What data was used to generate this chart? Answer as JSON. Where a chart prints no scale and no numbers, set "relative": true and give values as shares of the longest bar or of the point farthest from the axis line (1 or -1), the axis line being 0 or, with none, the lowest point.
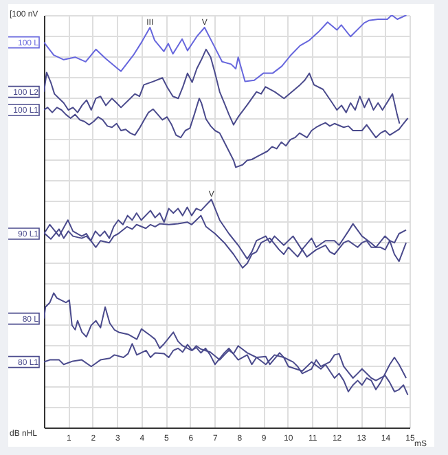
{
  "chart_data": {
    "type": "line",
    "relative": true,
    "xlabel": "mS",
    "xlim": [
      0,
      15
    ],
    "xticks": [
      1,
      2,
      3,
      4,
      5,
      6,
      7,
      8,
      9,
      10,
      11,
      12,
      13,
      14,
      15
    ],
    "grid": true,
    "annotations": [
      "[100 nV",
      "dB nHL",
      {
        "text": "III",
        "x": 4.35,
        "y": 0.97
      },
      {
        "text": "V",
        "x": 6.59,
        "y": 0.97
      },
      {
        "text": "V",
        "x": 6.87,
        "y": 0.553
      }
    ],
    "series": [
      {
        "name": "100 L",
        "color": "#6666dd",
        "x": [
          0,
          0.4,
          0.81,
          1.28,
          1.71,
          2.13,
          2.54,
          3.03,
          3.16,
          3.67,
          3.97,
          4.35,
          4.54,
          4.92,
          5.1,
          5.29,
          5.67,
          5.89,
          6.27,
          6.59,
          6.93,
          7.31,
          7.68,
          7.87,
          7.97,
          8.25,
          8.63,
          9,
          9.38,
          9.76,
          10.13,
          10.51,
          10.89,
          11.26,
          11.64,
          12.02,
          12.2,
          12.58,
          13.14,
          13.33,
          13.71,
          14.09,
          14.27,
          14.5,
          14.87
        ],
        "values": [
          0.934,
          0.903,
          0.892,
          0.898,
          0.887,
          0.917,
          0.894,
          0.87,
          0.864,
          0.903,
          0.931,
          0.97,
          0.939,
          0.912,
          0.931,
          0.906,
          0.942,
          0.914,
          0.948,
          0.97,
          0.931,
          0.887,
          0.881,
          0.87,
          0.898,
          0.839,
          0.842,
          0.859,
          0.859,
          0.876,
          0.903,
          0.926,
          0.939,
          0.959,
          0.983,
          0.964,
          0.976,
          0.948,
          0.981,
          0.987,
          0.99,
          0.99,
          1,
          0.99,
          1
        ]
      },
      {
        "name": "100 L2",
        "color": "#4a4a8c",
        "x": [
          0,
          0.11,
          0.28,
          0.43,
          0.62,
          0.81,
          1,
          1.19,
          1.38,
          1.56,
          1.75,
          1.94,
          2.13,
          2.32,
          2.54,
          2.79,
          2.98,
          3.16,
          3.54,
          3.73,
          3.92,
          4.1,
          4.48,
          4.86,
          5.05,
          5.29,
          5.51,
          5.7,
          5.89,
          6.08,
          6.27,
          6.46,
          6.65,
          6.84,
          7.02,
          7.21,
          7.4,
          7.59,
          7.78,
          7.97,
          8.35,
          8.72,
          8.91,
          9.09,
          9.47,
          9.85,
          10.51,
          10.7,
          10.89,
          11.08,
          11.45,
          11.83,
          12.02,
          12.21,
          12.4,
          12.58,
          12.77,
          12.96,
          13.15,
          13.33,
          13.52,
          13.71,
          13.89,
          14.3,
          14.49,
          14.59
        ],
        "values": [
          0.814,
          0.861,
          0.837,
          0.809,
          0.798,
          0.787,
          0.77,
          0.776,
          0.764,
          0.781,
          0.794,
          0.77,
          0.798,
          0.803,
          0.781,
          0.798,
          0.787,
          0.776,
          0.798,
          0.809,
          0.803,
          0.831,
          0.839,
          0.848,
          0.826,
          0.803,
          0.798,
          0.826,
          0.859,
          0.837,
          0.87,
          0.892,
          0.917,
          0.898,
          0.859,
          0.814,
          0.787,
          0.759,
          0.734,
          0.753,
          0.783,
          0.814,
          0.809,
          0.826,
          0.814,
          0.798,
          0.831,
          0.842,
          0.859,
          0.831,
          0.82,
          0.787,
          0.77,
          0.781,
          0.764,
          0.787,
          0.77,
          0.803,
          0.776,
          0.798,
          0.77,
          0.787,
          0.77,
          0.809,
          0.759,
          0.737
        ]
      },
      {
        "name": "100 L1",
        "color": "#4a4a8c",
        "x": [
          0,
          0.15,
          0.34,
          0.53,
          0.72,
          0.9,
          1.09,
          1.28,
          1.47,
          1.66,
          1.85,
          2.04,
          2.22,
          2.41,
          2.6,
          2.79,
          2.98,
          3.16,
          3.35,
          3.54,
          3.73,
          3.92,
          4.11,
          4.29,
          4.48,
          4.67,
          4.86,
          5.05,
          5.24,
          5.42,
          5.61,
          5.8,
          5.99,
          6.18,
          6.37,
          6.46,
          6.65,
          6.84,
          7.02,
          7.21,
          7.4,
          7.59,
          7.78,
          7.87,
          8.15,
          8.34,
          8.53,
          8.81,
          9.17,
          9.36,
          9.55,
          9.74,
          9.93,
          10.11,
          10.3,
          10.49,
          10.79,
          10.98,
          11.17,
          11.36,
          11.55,
          11.73,
          11.92,
          12.3,
          12.49,
          12.68,
          13.05,
          13.24,
          13.62,
          13.81,
          14,
          14.19,
          14.57,
          14.75,
          14.93
        ],
        "values": [
          0.77,
          0.776,
          0.764,
          0.776,
          0.77,
          0.759,
          0.75,
          0.759,
          0.746,
          0.742,
          0.734,
          0.742,
          0.753,
          0.746,
          0.731,
          0.728,
          0.737,
          0.72,
          0.723,
          0.714,
          0.709,
          0.726,
          0.746,
          0.764,
          0.772,
          0.759,
          0.746,
          0.753,
          0.734,
          0.709,
          0.703,
          0.72,
          0.726,
          0.761,
          0.798,
          0.787,
          0.748,
          0.731,
          0.72,
          0.714,
          0.692,
          0.67,
          0.648,
          0.631,
          0.637,
          0.648,
          0.65,
          0.659,
          0.67,
          0.681,
          0.676,
          0.692,
          0.683,
          0.698,
          0.703,
          0.714,
          0.703,
          0.72,
          0.728,
          0.734,
          0.739,
          0.731,
          0.737,
          0.728,
          0.731,
          0.72,
          0.72,
          0.734,
          0.703,
          0.714,
          0.72,
          0.709,
          0.723,
          0.737,
          0.75
        ]
      },
      {
        "name": "90 L1",
        "color": "#4a4a8c",
        "x": [
          0,
          0.24,
          0.62,
          0.98,
          1.19,
          1.55,
          1.74,
          1.92,
          2.11,
          2.3,
          2.49,
          2.68,
          2.86,
          3.05,
          3.24,
          3.43,
          3.62,
          3.8,
          3.99,
          4.37,
          4.56,
          4.75,
          4.93,
          5.12,
          5.31,
          5.5,
          5.69,
          5.88,
          6.06,
          6.25,
          6.44,
          6.87,
          7.02,
          7.21,
          7.59,
          7.97,
          8.34,
          8.53,
          8.72,
          9.1,
          9.27,
          9.46,
          9.84,
          10.22,
          10.58,
          10.98,
          11.17,
          11.55,
          11.92,
          12.11,
          12.49,
          12.68,
          13.05,
          13.41,
          13.62,
          13.99,
          14.19,
          14.38,
          14.57,
          14.86
        ],
        "values": [
          0.47,
          0.492,
          0.464,
          0.503,
          0.476,
          0.464,
          0.47,
          0.453,
          0.476,
          0.464,
          0.476,
          0.459,
          0.487,
          0.503,
          0.492,
          0.514,
          0.503,
          0.52,
          0.503,
          0.526,
          0.509,
          0.52,
          0.498,
          0.531,
          0.52,
          0.531,
          0.514,
          0.534,
          0.514,
          0.531,
          0.526,
          0.553,
          0.531,
          0.503,
          0.47,
          0.442,
          0.409,
          0.426,
          0.453,
          0.464,
          0.448,
          0.464,
          0.442,
          0.464,
          0.431,
          0.459,
          0.437,
          0.453,
          0.453,
          0.442,
          0.476,
          0.494,
          0.464,
          0.448,
          0.437,
          0.464,
          0.453,
          0.448,
          0.47,
          0.479
        ]
      },
      {
        "color": "#4a4a8c",
        "x": [
          0,
          0.28,
          0.62,
          0.81,
          1,
          1.19,
          1.55,
          1.74,
          1.92,
          2.13,
          2.32,
          2.68,
          2.86,
          3.05,
          3.41,
          3.62,
          3.8,
          4.18,
          4.37,
          4.56,
          4.75,
          5.12,
          5.5,
          5.88,
          6.06,
          6.25,
          6.44,
          6.65,
          7.02,
          7.4,
          7.78,
          8.15,
          8.34,
          8.53,
          8.72,
          8.91,
          9.27,
          9.65,
          9.84,
          10.03,
          10.41,
          10.6,
          10.79,
          11.17,
          11.55,
          11.73,
          11.92,
          12.3,
          12.49,
          12.87,
          13.05,
          13.24,
          13.43,
          13.81,
          14,
          14.19,
          14.38,
          14.57,
          14.75,
          14.86
        ],
        "values": [
          0.472,
          0.457,
          0.481,
          0.459,
          0.476,
          0.464,
          0.459,
          0.464,
          0.453,
          0.437,
          0.453,
          0.448,
          0.464,
          0.47,
          0.487,
          0.481,
          0.492,
          0.483,
          0.492,
          0.487,
          0.494,
          0.492,
          0.494,
          0.498,
          0.492,
          0.503,
          0.514,
          0.487,
          0.47,
          0.448,
          0.42,
          0.387,
          0.398,
          0.42,
          0.426,
          0.448,
          0.459,
          0.431,
          0.42,
          0.437,
          0.414,
          0.431,
          0.414,
          0.431,
          0.442,
          0.426,
          0.42,
          0.448,
          0.453,
          0.437,
          0.448,
          0.453,
          0.437,
          0.437,
          0.431,
          0.453,
          0.42,
          0.403,
          0.431,
          0.448
        ]
      },
      {
        "name": "80 L",
        "color": "#4a4a8c",
        "x": [
          0,
          0.06,
          0.24,
          0.4,
          0.53,
          0.9,
          1.04,
          1.15,
          1.28,
          1.38,
          1.56,
          1.74,
          1.94,
          2.13,
          2.32,
          2.51,
          2.7,
          2.89,
          3.07,
          3.45,
          3.81,
          4,
          4.37,
          4.56,
          4.75,
          4.93,
          5.31,
          5.5,
          5.69,
          6.06,
          6.25,
          6.44,
          6.63,
          6.82,
          7.02,
          7.4,
          7.59,
          7.97,
          8.34,
          8.53,
          8.72,
          9.1,
          9.27,
          9.67,
          9.84,
          10.03,
          10.6,
          10.98,
          11.36,
          11.55,
          11.92,
          12.11,
          12.3,
          12.49,
          12.68,
          12.87,
          13.05,
          13.24,
          13.43,
          13.62,
          13.81,
          14.19,
          14.38,
          14.57,
          14.86
        ],
        "values": [
          0.264,
          0.292,
          0.303,
          0.326,
          0.314,
          0.303,
          0.309,
          0.248,
          0.237,
          0.259,
          0.231,
          0.22,
          0.248,
          0.259,
          0.242,
          0.292,
          0.253,
          0.237,
          0.231,
          0.226,
          0.214,
          0.239,
          0.223,
          0.214,
          0.192,
          0.203,
          0.231,
          0.209,
          0.198,
          0.187,
          0.194,
          0.181,
          0.192,
          0.176,
          0.153,
          0.181,
          0.192,
          0.164,
          0.176,
          0.153,
          0.17,
          0.172,
          0.153,
          0.181,
          0.17,
          0.148,
          0.137,
          0.159,
          0.142,
          0.153,
          0.12,
          0.131,
          0.114,
          0.087,
          0.103,
          0.114,
          0.103,
          0.12,
          0.114,
          0.092,
          0.109,
          0.153,
          0.17,
          0.153,
          0.12
        ]
      },
      {
        "name": "80 L1",
        "color": "#4a4a8c",
        "x": [
          0,
          0.24,
          0.62,
          0.81,
          1.19,
          1.55,
          1.94,
          2.32,
          2.7,
          2.89,
          3.26,
          3.45,
          3.62,
          3.81,
          4.19,
          4.37,
          4.56,
          4.93,
          5.12,
          5.31,
          5.5,
          5.69,
          5.89,
          6.08,
          6.25,
          6.44,
          6.82,
          7.21,
          7.4,
          7.59,
          7.78,
          7.97,
          8.34,
          8.72,
          9.1,
          9.46,
          9.84,
          10.22,
          10.41,
          10.6,
          10.98,
          11.17,
          11.36,
          11.73,
          11.92,
          12.11,
          12.3,
          12.68,
          12.87,
          13.05,
          13.43,
          13.62,
          14,
          14.19,
          14.38,
          14.57,
          14.75,
          14.93
        ],
        "values": [
          0.159,
          0.164,
          0.164,
          0.153,
          0.161,
          0.164,
          0.148,
          0.164,
          0.168,
          0.176,
          0.17,
          0.179,
          0.203,
          0.176,
          0.187,
          0.17,
          0.181,
          0.179,
          0.17,
          0.187,
          0.192,
          0.183,
          0.201,
          0.187,
          0.198,
          0.19,
          0.183,
          0.164,
          0.176,
          0.187,
          0.179,
          0.198,
          0.181,
          0.17,
          0.153,
          0.176,
          0.17,
          0.159,
          0.148,
          0.131,
          0.142,
          0.164,
          0.148,
          0.159,
          0.176,
          0.179,
          0.148,
          0.12,
          0.131,
          0.142,
          0.12,
          0.114,
          0.126,
          0.109,
          0.087,
          0.092,
          0.103,
          0.079
        ]
      }
    ]
  }
}
